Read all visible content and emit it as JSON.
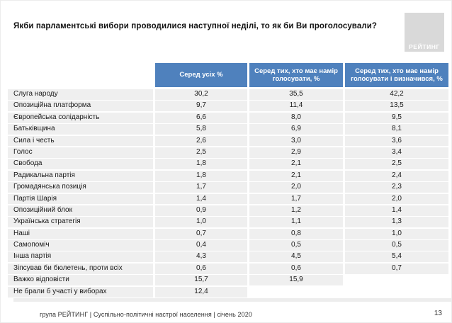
{
  "slide": {
    "title": "Якби парламентські вибори проводилися наступної неділі, то як би Ви проголосували?",
    "logo_text": "РЕЙТИНГ",
    "footer": "група РЕЙТИНГ | Суспільно-політичні настрої населення | січень  2020",
    "page_number": "13"
  },
  "colors": {
    "header_bg": "#4f81bd",
    "header_text": "#ffffff",
    "row_bg": "#efefef"
  },
  "chart_data": {
    "type": "table",
    "title": "Якби парламентські вибори проводилися наступної неділі, то як би Ви проголосували?",
    "label_column_header": "",
    "columns": [
      "Серед усіх %",
      "Серед тих, хто має намір голосувати, %",
      "Серед тих, хто має намір голосувати і визначився, %"
    ],
    "rows": [
      {
        "label": "Слуга народу",
        "values": [
          "30,2",
          "35,5",
          "42,2"
        ]
      },
      {
        "label": "Опозиційна платформа",
        "values": [
          "9,7",
          "11,4",
          "13,5"
        ]
      },
      {
        "label": "Європейська солідарність",
        "values": [
          "6,6",
          "8,0",
          "9,5"
        ]
      },
      {
        "label": "Батьківщина",
        "values": [
          "5,8",
          "6,9",
          "8,1"
        ]
      },
      {
        "label": "Сила і честь",
        "values": [
          "2,6",
          "3,0",
          "3,6"
        ]
      },
      {
        "label": "Голос",
        "values": [
          "2,5",
          "2,9",
          "3,4"
        ]
      },
      {
        "label": "Свобода",
        "values": [
          "1,8",
          "2,1",
          "2,5"
        ]
      },
      {
        "label": "Радикальна партія",
        "values": [
          "1,8",
          "2,1",
          "2,4"
        ]
      },
      {
        "label": "Громадянська позиція",
        "values": [
          "1,7",
          "2,0",
          "2,3"
        ]
      },
      {
        "label": "Партія Шарія",
        "values": [
          "1,4",
          "1,7",
          "2,0"
        ]
      },
      {
        "label": "Опозиційний блок",
        "values": [
          "0,9",
          "1,2",
          "1,4"
        ]
      },
      {
        "label": "Українська стратегія",
        "values": [
          "1,0",
          "1,1",
          "1,3"
        ]
      },
      {
        "label": "Наші",
        "values": [
          "0,7",
          "0,8",
          "1,0"
        ]
      },
      {
        "label": "Самопоміч",
        "values": [
          "0,4",
          "0,5",
          "0,5"
        ]
      },
      {
        "label": "Інша партія",
        "values": [
          "4,3",
          "4,5",
          "5,4"
        ]
      },
      {
        "label": "Зіпсував би бюлетень, проти всіх",
        "values": [
          "0,6",
          "0,6",
          "0,7"
        ]
      },
      {
        "label": "Важко відповісти",
        "values": [
          "15,7",
          "15,9",
          ""
        ]
      },
      {
        "label": "Не брали б участі у виборах",
        "values": [
          "12,4",
          "",
          ""
        ]
      }
    ]
  }
}
